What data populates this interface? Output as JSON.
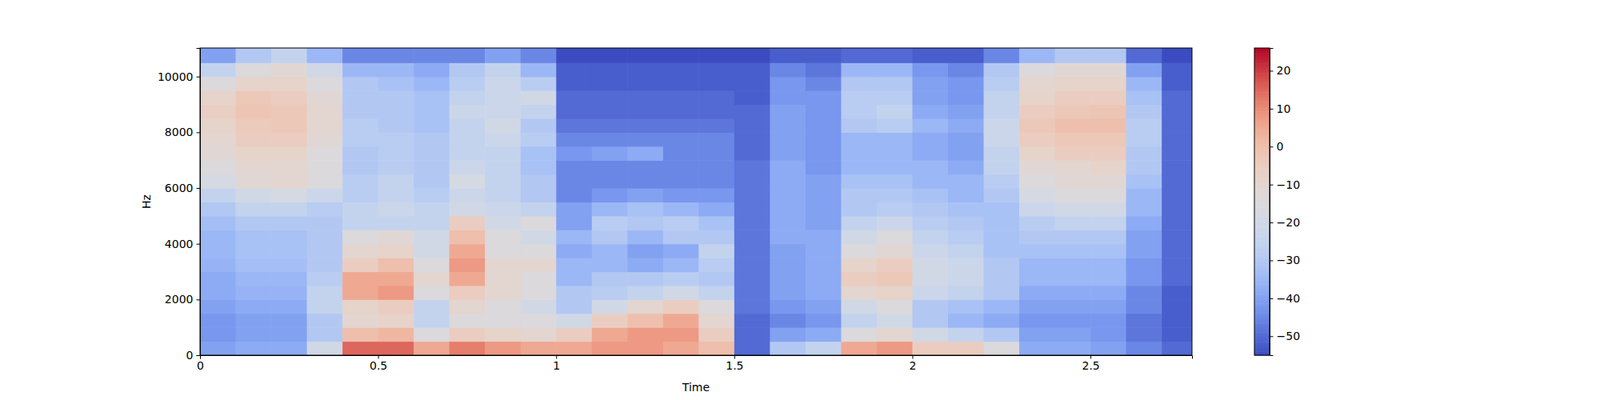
{
  "chart_data": {
    "type": "heatmap",
    "xlabel": "Time",
    "ylabel": "Hz",
    "xlim": [
      0,
      2.785
    ],
    "ylim": [
      0,
      11025
    ],
    "xticks": [
      0,
      0.5,
      1,
      1.5,
      2,
      2.5
    ],
    "yticks": [
      0,
      2000,
      4000,
      6000,
      8000,
      10000
    ],
    "x_edges": [
      0,
      0.1,
      0.2,
      0.3,
      0.4,
      0.5,
      0.6,
      0.7,
      0.8,
      0.9,
      1.0,
      1.1,
      1.2,
      1.3,
      1.4,
      1.5,
      1.6,
      1.7,
      1.8,
      1.9,
      2.0,
      2.1,
      2.2,
      2.3,
      2.4,
      2.5,
      2.6,
      2.7,
      2.785
    ],
    "y_edges": [
      0,
      500,
      1000,
      1500,
      2000,
      2500,
      3000,
      3500,
      4000,
      4500,
      5000,
      5500,
      6000,
      6500,
      7000,
      7500,
      8000,
      8500,
      9000,
      9500,
      10000,
      10500,
      11025
    ],
    "values": [
      [
        -40,
        -42,
        -42,
        -40,
        -38,
        -38,
        -36,
        -35,
        -35,
        -33,
        -30,
        -25,
        -18,
        -15,
        -12,
        -10,
        -8,
        -6,
        -8,
        -15,
        -25,
        -40
      ],
      [
        -38,
        -40,
        -40,
        -38,
        -36,
        -35,
        -33,
        -32,
        -32,
        -30,
        -25,
        -20,
        -12,
        -10,
        -8,
        -5,
        -4,
        -2,
        -3,
        -8,
        -15,
        -30
      ],
      [
        -38,
        -40,
        -40,
        -38,
        -36,
        -35,
        -33,
        -32,
        -32,
        -30,
        -25,
        -18,
        -10,
        -10,
        -8,
        -5,
        -3,
        -3,
        -5,
        -8,
        -12,
        -25
      ],
      [
        -20,
        -30,
        -30,
        -25,
        -25,
        -28,
        -30,
        -30,
        -30,
        -30,
        -28,
        -22,
        -15,
        -15,
        -15,
        -12,
        -10,
        -10,
        -12,
        -15,
        -20,
        -35
      ],
      [
        15,
        0,
        -10,
        -8,
        5,
        5,
        -5,
        -10,
        -15,
        -25,
        -25,
        -28,
        -28,
        -30,
        -30,
        -28,
        -28,
        -30,
        -30,
        -30,
        -35,
        -45
      ],
      [
        15,
        2,
        -8,
        -5,
        8,
        5,
        0,
        -8,
        -12,
        -25,
        -22,
        -25,
        -25,
        -28,
        -28,
        -28,
        -30,
        -30,
        -30,
        -32,
        -35,
        -45
      ],
      [
        5,
        -15,
        -25,
        -25,
        -15,
        -10,
        -15,
        -20,
        -20,
        -25,
        -25,
        -28,
        -30,
        -30,
        -30,
        -30,
        -32,
        -32,
        -32,
        -35,
        -38,
        -45
      ],
      [
        12,
        -5,
        -15,
        -10,
        -5,
        5,
        8,
        5,
        0,
        -5,
        -20,
        -22,
        -18,
        -22,
        -25,
        -25,
        -25,
        -22,
        -25,
        -28,
        -30,
        -45
      ],
      [
        8,
        -8,
        -15,
        -15,
        -10,
        -10,
        -10,
        -15,
        -15,
        -20,
        -22,
        -25,
        -25,
        -25,
        -25,
        -22,
        -20,
        -22,
        -22,
        -22,
        -25,
        -40
      ],
      [
        5,
        -10,
        -15,
        -20,
        -15,
        -15,
        -10,
        -15,
        -20,
        -15,
        -25,
        -30,
        -30,
        -32,
        -32,
        -28,
        -30,
        -25,
        -20,
        -28,
        -35,
        -45
      ],
      [
        5,
        -5,
        -20,
        -30,
        -30,
        -35,
        -35,
        -38,
        -35,
        -40,
        -40,
        -45,
        -45,
        -45,
        -42,
        -45,
        -48,
        -50,
        -50,
        -52,
        -52,
        -55
      ],
      [
        8,
        5,
        -5,
        -20,
        -28,
        -30,
        -35,
        -35,
        -30,
        -28,
        -35,
        -42,
        -45,
        -45,
        -40,
        -45,
        -48,
        -50,
        -50,
        -52,
        -52,
        -55
      ],
      [
        8,
        8,
        0,
        -10,
        -25,
        -30,
        -38,
        -40,
        -35,
        -30,
        -32,
        -40,
        -45,
        -45,
        -38,
        -45,
        -48,
        -50,
        -50,
        -52,
        -52,
        -55
      ],
      [
        5,
        8,
        5,
        -5,
        -20,
        -28,
        -35,
        -38,
        -30,
        -28,
        -35,
        -42,
        -45,
        -45,
        -45,
        -45,
        -48,
        -50,
        -50,
        -52,
        -52,
        -55
      ],
      [
        0,
        -5,
        -10,
        -15,
        -25,
        -30,
        -28,
        -25,
        -30,
        -32,
        -38,
        -42,
        -45,
        -45,
        -45,
        -45,
        -48,
        -50,
        -50,
        -52,
        -52,
        -55
      ],
      [
        -50,
        -50,
        -50,
        -48,
        -48,
        -48,
        -48,
        -48,
        -48,
        -48,
        -48,
        -48,
        -48,
        -48,
        -50,
        -50,
        -50,
        -50,
        -52,
        -52,
        -52,
        -55
      ],
      [
        -30,
        -40,
        -45,
        -42,
        -40,
        -40,
        -40,
        -40,
        -38,
        -38,
        -38,
        -38,
        -38,
        -38,
        -40,
        -40,
        -40,
        -40,
        -42,
        -42,
        -45,
        -52
      ],
      [
        -25,
        -38,
        -42,
        -40,
        -38,
        -38,
        -38,
        -38,
        -38,
        -40,
        -40,
        -40,
        -40,
        -42,
        -42,
        -42,
        -42,
        -42,
        -42,
        -45,
        -48,
        -52
      ],
      [
        5,
        -15,
        -25,
        -20,
        -10,
        -5,
        -8,
        -15,
        -20,
        -25,
        -30,
        -30,
        -32,
        -35,
        -35,
        -35,
        -30,
        -28,
        -28,
        -30,
        -35,
        -50
      ],
      [
        8,
        -10,
        -20,
        -15,
        -8,
        -3,
        -5,
        -12,
        -15,
        -22,
        -28,
        -30,
        -32,
        -35,
        -35,
        -35,
        -28,
        -25,
        -28,
        -30,
        -35,
        -50
      ],
      [
        -5,
        -20,
        -30,
        -30,
        -22,
        -20,
        -20,
        -22,
        -25,
        -28,
        -30,
        -32,
        -35,
        -35,
        -38,
        -38,
        -35,
        -38,
        -40,
        -40,
        -42,
        -52
      ],
      [
        -5,
        -25,
        -35,
        -32,
        -25,
        -22,
        -22,
        -25,
        -28,
        -30,
        -32,
        -35,
        -35,
        -38,
        -40,
        -40,
        -38,
        -40,
        -42,
        -42,
        -45,
        -52
      ],
      [
        -15,
        -30,
        -38,
        -35,
        -30,
        -30,
        -30,
        -32,
        -32,
        -32,
        -32,
        -30,
        -28,
        -25,
        -25,
        -22,
        -22,
        -25,
        -25,
        -28,
        -30,
        -45
      ],
      [
        -38,
        -40,
        -42,
        -40,
        -38,
        -35,
        -35,
        -32,
        -30,
        -28,
        -22,
        -18,
        -15,
        -12,
        -8,
        -5,
        -3,
        -5,
        -8,
        -10,
        -15,
        -35
      ],
      [
        -38,
        -40,
        -42,
        -40,
        -38,
        -35,
        -35,
        -32,
        -30,
        -25,
        -20,
        -15,
        -12,
        -10,
        -5,
        -3,
        0,
        -3,
        -5,
        -8,
        -12,
        -30
      ],
      [
        -40,
        -42,
        -42,
        -40,
        -38,
        -35,
        -35,
        -32,
        -30,
        -25,
        -20,
        -15,
        -12,
        -8,
        -5,
        -3,
        0,
        -2,
        -5,
        -8,
        -12,
        -30
      ],
      [
        -45,
        -48,
        -48,
        -45,
        -45,
        -42,
        -42,
        -40,
        -40,
        -38,
        -35,
        -35,
        -32,
        -30,
        -30,
        -28,
        -28,
        -30,
        -32,
        -35,
        -40,
        -50
      ],
      [
        -50,
        -52,
        -52,
        -52,
        -52,
        -50,
        -50,
        -50,
        -50,
        -50,
        -50,
        -50,
        -50,
        -50,
        -50,
        -50,
        -50,
        -50,
        -50,
        -52,
        -52,
        -55
      ]
    ],
    "colorbar": {
      "range": [
        -55,
        26
      ],
      "ticks": [
        {
          "value": -50,
          "label": "−50"
        },
        {
          "value": -40,
          "label": "−40"
        },
        {
          "value": -30,
          "label": "−30"
        },
        {
          "value": -20,
          "label": "−20"
        },
        {
          "value": -10,
          "label": "−10"
        },
        {
          "value": 0,
          "label": "0"
        },
        {
          "value": 10,
          "label": "10"
        },
        {
          "value": 20,
          "label": "20"
        }
      ]
    }
  }
}
